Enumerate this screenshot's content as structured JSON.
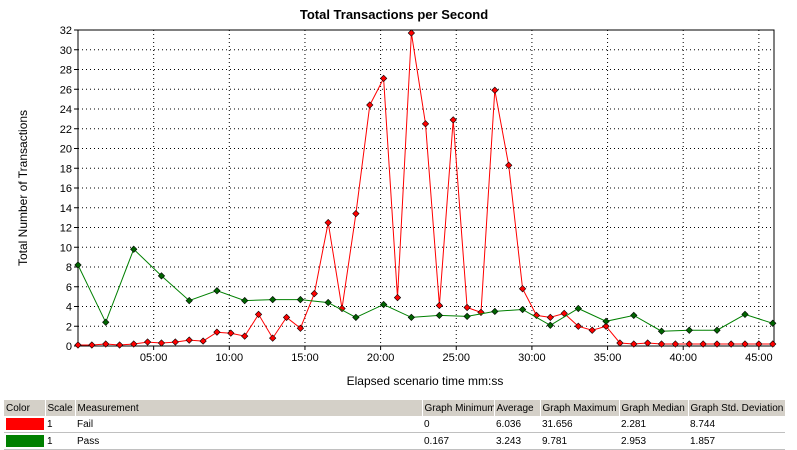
{
  "chart_data": {
    "type": "line",
    "title": "Total Transactions per Second",
    "xlabel": "Elapsed scenario time mm:ss",
    "ylabel": "Total Number of Transactions",
    "xlim": [
      0,
      2760
    ],
    "ylim": [
      0,
      32
    ],
    "x_ticks": [
      "05:00",
      "10:00",
      "15:00",
      "20:00",
      "25:00",
      "30:00",
      "35:00",
      "40:00",
      "45:00"
    ],
    "y_ticks": [
      "0",
      "2",
      "4",
      "6",
      "8",
      "10",
      "12",
      "14",
      "16",
      "18",
      "20",
      "22",
      "24",
      "26",
      "28",
      "30",
      "32"
    ],
    "grid": true,
    "series": [
      {
        "name": "Fail",
        "color": "#ff0000",
        "marker_color": "#ff0000",
        "x": [
          0,
          55,
          110,
          165,
          221,
          276,
          331,
          386,
          441,
          496,
          551,
          606,
          661,
          716,
          772,
          827,
          882,
          937,
          992,
          1047,
          1102,
          1157,
          1212,
          1267,
          1322,
          1378,
          1433,
          1488,
          1543,
          1598,
          1653,
          1708,
          1763,
          1818,
          1873,
          1928,
          1984,
          2039,
          2094,
          2149,
          2204,
          2259,
          2314,
          2369,
          2424,
          2479,
          2534,
          2590,
          2645,
          2700,
          2755
        ],
        "values": [
          0.1,
          0.1,
          0.2,
          0.1,
          0.2,
          0.4,
          0.3,
          0.4,
          0.6,
          0.5,
          1.4,
          1.3,
          1.0,
          3.2,
          0.8,
          2.9,
          1.8,
          5.3,
          12.5,
          3.8,
          13.4,
          24.4,
          27.1,
          4.9,
          31.7,
          22.5,
          4.1,
          22.9,
          3.9,
          3.4,
          25.9,
          18.3,
          5.8,
          3.1,
          2.9,
          3.3,
          2.0,
          1.6,
          2.0,
          0.3,
          0.2,
          0.3,
          0.2,
          0.2,
          0.2,
          0.2,
          0.2,
          0.2,
          0.2,
          0.2,
          0.2
        ]
      },
      {
        "name": "Pass",
        "color": "#008000",
        "marker_color": "#006400",
        "x": [
          0,
          110,
          221,
          331,
          441,
          551,
          661,
          772,
          882,
          992,
          1102,
          1212,
          1322,
          1433,
          1543,
          1653,
          1763,
          1873,
          1984,
          2094,
          2204,
          2314,
          2424,
          2534,
          2645,
          2755
        ],
        "values": [
          8.2,
          2.4,
          9.8,
          7.1,
          4.6,
          5.6,
          4.6,
          4.7,
          4.7,
          4.4,
          2.9,
          4.2,
          2.9,
          3.1,
          3.0,
          3.5,
          3.7,
          2.1,
          3.8,
          2.5,
          3.1,
          1.5,
          1.6,
          1.6,
          3.2,
          2.3
        ]
      }
    ]
  },
  "legend_table": {
    "headers": [
      "Color",
      "Scale",
      "Measurement",
      "Graph Minimum",
      "Average",
      "Graph Maximum",
      "Graph Median",
      "Graph Std. Deviation"
    ],
    "rows": [
      {
        "color": "#ff0000",
        "scale": "1",
        "measurement": "Fail",
        "min": "0",
        "avg": "6.036",
        "max": "31.656",
        "median": "2.281",
        "std": "8.744"
      },
      {
        "color": "#008000",
        "scale": "1",
        "measurement": "Pass",
        "min": "0.167",
        "avg": "3.243",
        "max": "9.781",
        "median": "2.953",
        "std": "1.857"
      }
    ]
  }
}
